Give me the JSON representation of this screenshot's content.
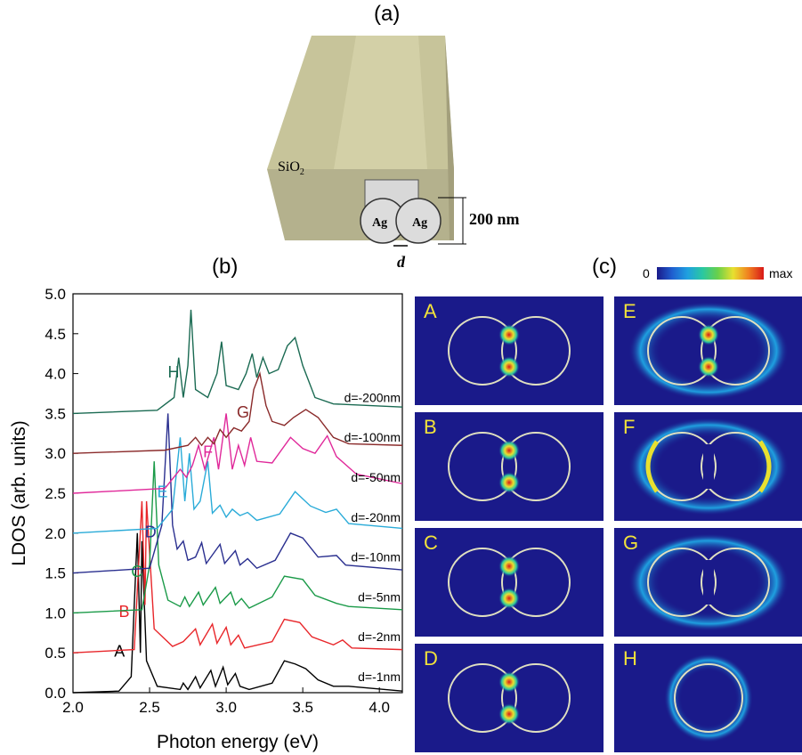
{
  "panels": {
    "a": {
      "label": "(a)",
      "material_label": "SiO",
      "material_sub": "2",
      "particle_labels": [
        "Ag",
        "Ag"
      ],
      "dimension_label": "200 nm",
      "gap_label": "d"
    },
    "b": {
      "label": "(b)"
    },
    "c": {
      "label": "(c)",
      "colorbar_min_label": "0",
      "colorbar_max_label": "max",
      "tiles": [
        {
          "letter": "A",
          "pattern": "gap-hotspot"
        },
        {
          "letter": "B",
          "pattern": "gap-hotspot"
        },
        {
          "letter": "C",
          "pattern": "gap-hotspot"
        },
        {
          "letter": "D",
          "pattern": "gap-hotspot"
        },
        {
          "letter": "E",
          "pattern": "surface-ring-with-gap"
        },
        {
          "letter": "F",
          "pattern": "outer-crescents"
        },
        {
          "letter": "G",
          "pattern": "merged-ring"
        },
        {
          "letter": "H",
          "pattern": "single-ring"
        }
      ]
    }
  },
  "colors": {
    "waveguide_top": "#c7c49a",
    "waveguide_front": "#b4b18d",
    "map_background": "#1a1a8a",
    "tile_letter": "#f2e23a"
  },
  "chart_data": {
    "type": "line",
    "xlabel": "Photon energy (eV)",
    "ylabel": "LDOS (arb. units)",
    "xlim": [
      2.0,
      4.15
    ],
    "ylim": [
      0.0,
      5.0
    ],
    "xticks": [
      "2.0",
      "2.5",
      "3.0",
      "3.5",
      "4.0"
    ],
    "yticks": [
      "0.0",
      "0.5",
      "1.0",
      "1.5",
      "2.0",
      "2.5",
      "3.0",
      "3.5",
      "4.0",
      "4.5",
      "5.0"
    ],
    "grid": false,
    "series": [
      {
        "name": "d=-1nm",
        "marker": "A",
        "color": "#000000",
        "offset": 0.0,
        "points": [
          [
            2.0,
            0.0
          ],
          [
            2.3,
            0.02
          ],
          [
            2.38,
            0.2
          ],
          [
            2.42,
            2.0
          ],
          [
            2.44,
            0.5
          ],
          [
            2.45,
            1.9
          ],
          [
            2.48,
            0.4
          ],
          [
            2.55,
            0.08
          ],
          [
            2.7,
            0.04
          ],
          [
            2.72,
            0.12
          ],
          [
            2.75,
            0.04
          ],
          [
            2.8,
            0.2
          ],
          [
            2.83,
            0.06
          ],
          [
            2.9,
            0.28
          ],
          [
            2.93,
            0.08
          ],
          [
            2.98,
            0.32
          ],
          [
            3.01,
            0.1
          ],
          [
            3.06,
            0.24
          ],
          [
            3.09,
            0.08
          ],
          [
            3.15,
            0.04
          ],
          [
            3.3,
            0.12
          ],
          [
            3.38,
            0.4
          ],
          [
            3.45,
            0.36
          ],
          [
            3.52,
            0.3
          ],
          [
            3.6,
            0.16
          ],
          [
            3.7,
            0.08
          ],
          [
            3.8,
            0.08
          ],
          [
            4.15,
            0.02
          ]
        ]
      },
      {
        "name": "d=-2nm",
        "marker": "B",
        "color": "#e8262a",
        "offset": 0.5,
        "points": [
          [
            2.0,
            0.0
          ],
          [
            2.4,
            0.04
          ],
          [
            2.45,
            1.9
          ],
          [
            2.47,
            0.6
          ],
          [
            2.48,
            1.9
          ],
          [
            2.53,
            0.3
          ],
          [
            2.65,
            0.08
          ],
          [
            2.72,
            0.14
          ],
          [
            2.8,
            0.3
          ],
          [
            2.83,
            0.1
          ],
          [
            2.91,
            0.36
          ],
          [
            2.94,
            0.12
          ],
          [
            3.0,
            0.32
          ],
          [
            3.03,
            0.1
          ],
          [
            3.08,
            0.22
          ],
          [
            3.12,
            0.06
          ],
          [
            3.3,
            0.14
          ],
          [
            3.38,
            0.42
          ],
          [
            3.48,
            0.38
          ],
          [
            3.56,
            0.2
          ],
          [
            3.7,
            0.1
          ],
          [
            3.76,
            0.16
          ],
          [
            3.82,
            0.06
          ],
          [
            4.15,
            0.04
          ]
        ]
      },
      {
        "name": "d=-5nm",
        "marker": "C",
        "color": "#1a9a48",
        "offset": 1.0,
        "points": [
          [
            2.0,
            0.0
          ],
          [
            2.45,
            0.04
          ],
          [
            2.5,
            0.6
          ],
          [
            2.53,
            1.9
          ],
          [
            2.56,
            0.6
          ],
          [
            2.62,
            0.16
          ],
          [
            2.7,
            0.08
          ],
          [
            2.73,
            0.2
          ],
          [
            2.76,
            0.08
          ],
          [
            2.82,
            0.26
          ],
          [
            2.85,
            0.1
          ],
          [
            2.93,
            0.32
          ],
          [
            2.96,
            0.12
          ],
          [
            3.03,
            0.26
          ],
          [
            3.06,
            0.1
          ],
          [
            3.1,
            0.18
          ],
          [
            3.15,
            0.06
          ],
          [
            3.3,
            0.2
          ],
          [
            3.38,
            0.46
          ],
          [
            3.5,
            0.42
          ],
          [
            3.58,
            0.22
          ],
          [
            3.72,
            0.12
          ],
          [
            3.8,
            0.08
          ],
          [
            4.15,
            0.04
          ]
        ]
      },
      {
        "name": "d=-10nm",
        "marker": "D",
        "color": "#2a2f8f",
        "offset": 1.5,
        "points": [
          [
            2.0,
            0.0
          ],
          [
            2.5,
            0.06
          ],
          [
            2.58,
            0.6
          ],
          [
            2.62,
            2.0
          ],
          [
            2.65,
            0.6
          ],
          [
            2.68,
            0.3
          ],
          [
            2.72,
            0.4
          ],
          [
            2.75,
            0.16
          ],
          [
            2.8,
            0.2
          ],
          [
            2.84,
            0.38
          ],
          [
            2.87,
            0.12
          ],
          [
            2.96,
            0.36
          ],
          [
            2.99,
            0.12
          ],
          [
            3.06,
            0.28
          ],
          [
            3.09,
            0.1
          ],
          [
            3.14,
            0.18
          ],
          [
            3.2,
            0.06
          ],
          [
            3.32,
            0.16
          ],
          [
            3.42,
            0.5
          ],
          [
            3.5,
            0.44
          ],
          [
            3.6,
            0.2
          ],
          [
            3.72,
            0.22
          ],
          [
            3.78,
            0.1
          ],
          [
            4.15,
            0.04
          ]
        ]
      },
      {
        "name": "d=-20nm",
        "marker": "E",
        "color": "#2aabd8",
        "offset": 2.0,
        "points": [
          [
            2.0,
            0.0
          ],
          [
            2.55,
            0.06
          ],
          [
            2.65,
            0.3
          ],
          [
            2.7,
            1.2
          ],
          [
            2.73,
            0.4
          ],
          [
            2.76,
            1.0
          ],
          [
            2.79,
            0.3
          ],
          [
            2.83,
            0.4
          ],
          [
            2.88,
            0.9
          ],
          [
            2.91,
            0.25
          ],
          [
            2.96,
            0.35
          ],
          [
            3.0,
            0.2
          ],
          [
            3.04,
            0.3
          ],
          [
            3.09,
            0.22
          ],
          [
            3.14,
            0.26
          ],
          [
            3.2,
            0.16
          ],
          [
            3.35,
            0.24
          ],
          [
            3.45,
            0.52
          ],
          [
            3.55,
            0.34
          ],
          [
            3.65,
            0.26
          ],
          [
            3.72,
            0.3
          ],
          [
            3.8,
            0.12
          ],
          [
            4.15,
            0.06
          ]
        ]
      },
      {
        "name": "d=-50nm",
        "marker": "F",
        "color": "#e0299a",
        "offset": 2.5,
        "points": [
          [
            2.0,
            0.0
          ],
          [
            2.6,
            0.06
          ],
          [
            2.7,
            0.3
          ],
          [
            2.74,
            0.2
          ],
          [
            2.78,
            0.35
          ],
          [
            2.82,
            0.6
          ],
          [
            2.86,
            0.3
          ],
          [
            2.92,
            0.7
          ],
          [
            2.95,
            0.3
          ],
          [
            3.0,
            1.0
          ],
          [
            3.04,
            0.3
          ],
          [
            3.08,
            0.6
          ],
          [
            3.12,
            0.35
          ],
          [
            3.16,
            0.7
          ],
          [
            3.2,
            0.4
          ],
          [
            3.3,
            0.38
          ],
          [
            3.42,
            0.7
          ],
          [
            3.5,
            0.56
          ],
          [
            3.58,
            0.5
          ],
          [
            3.66,
            0.72
          ],
          [
            3.72,
            0.46
          ],
          [
            3.85,
            0.24
          ],
          [
            4.15,
            0.12
          ]
        ]
      },
      {
        "name": "d=-100nm",
        "marker": "G",
        "color": "#8a2a2a",
        "offset": 3.0,
        "points": [
          [
            2.0,
            0.0
          ],
          [
            2.6,
            0.04
          ],
          [
            2.75,
            0.1
          ],
          [
            2.8,
            0.2
          ],
          [
            2.84,
            0.1
          ],
          [
            2.88,
            0.2
          ],
          [
            2.92,
            0.12
          ],
          [
            2.96,
            0.3
          ],
          [
            3.0,
            0.2
          ],
          [
            3.05,
            0.32
          ],
          [
            3.1,
            0.28
          ],
          [
            3.15,
            0.4
          ],
          [
            3.18,
            0.8
          ],
          [
            3.22,
            1.0
          ],
          [
            3.26,
            0.6
          ],
          [
            3.3,
            0.4
          ],
          [
            3.38,
            0.35
          ],
          [
            3.44,
            0.45
          ],
          [
            3.52,
            0.55
          ],
          [
            3.6,
            0.45
          ],
          [
            3.7,
            0.2
          ],
          [
            3.8,
            0.12
          ],
          [
            4.15,
            0.1
          ]
        ]
      },
      {
        "name": "d=-200nm",
        "marker": "H",
        "color": "#1a6a52",
        "offset": 3.5,
        "points": [
          [
            2.0,
            0.0
          ],
          [
            2.55,
            0.04
          ],
          [
            2.66,
            0.2
          ],
          [
            2.69,
            0.7
          ],
          [
            2.72,
            0.2
          ],
          [
            2.75,
            0.6
          ],
          [
            2.77,
            1.3
          ],
          [
            2.8,
            0.3
          ],
          [
            2.88,
            0.2
          ],
          [
            2.94,
            0.5
          ],
          [
            2.97,
            0.9
          ],
          [
            3.0,
            0.35
          ],
          [
            3.08,
            0.3
          ],
          [
            3.13,
            0.5
          ],
          [
            3.17,
            0.75
          ],
          [
            3.2,
            0.45
          ],
          [
            3.24,
            0.7
          ],
          [
            3.28,
            0.5
          ],
          [
            3.34,
            0.55
          ],
          [
            3.4,
            0.85
          ],
          [
            3.45,
            0.95
          ],
          [
            3.5,
            0.6
          ],
          [
            3.58,
            0.2
          ],
          [
            3.7,
            0.12
          ],
          [
            4.15,
            0.08
          ]
        ]
      }
    ]
  }
}
